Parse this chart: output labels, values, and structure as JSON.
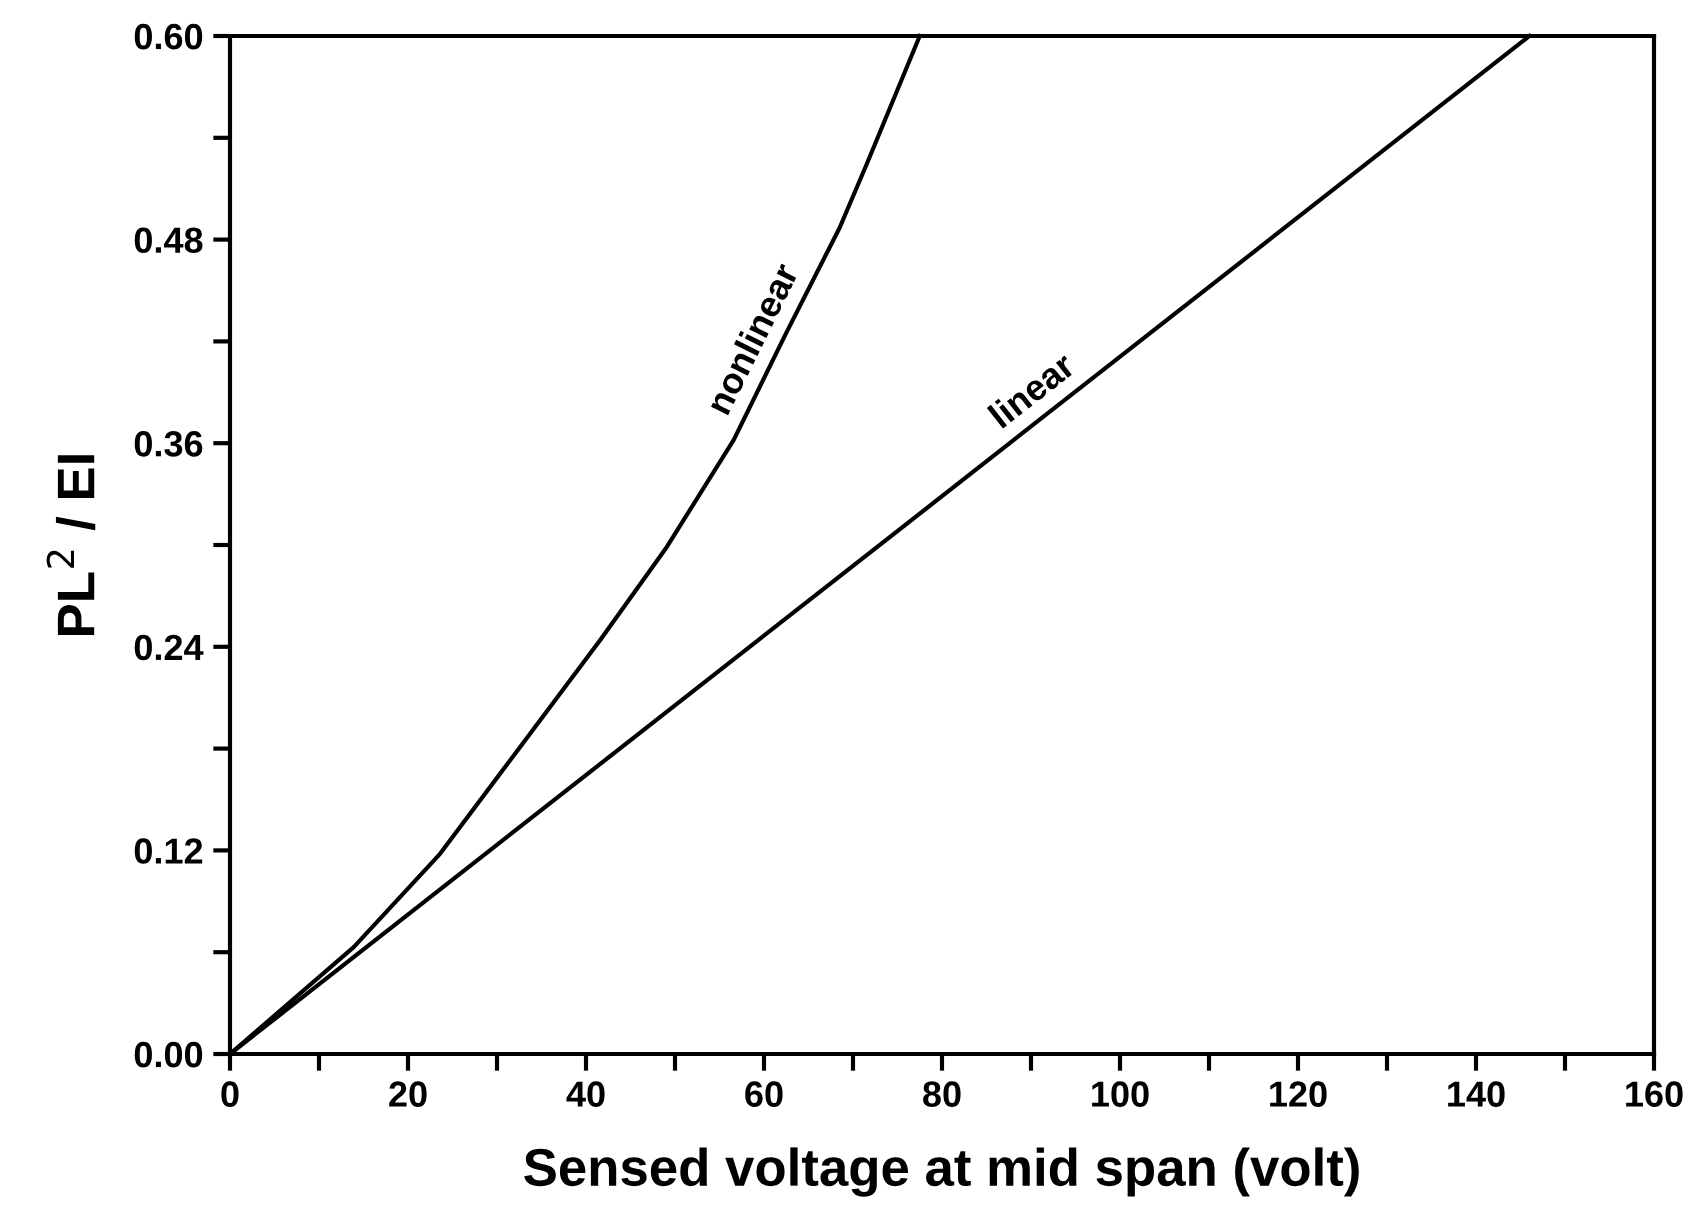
{
  "chart_data": {
    "type": "line",
    "xlabel": "Sensed voltage at mid span (volt)",
    "ylabel": "PL$^{2}$ / EI",
    "series": [
      {
        "name": "nonlinear",
        "color": "#000000",
        "x": [
          0,
          13.9,
          23.6,
          32.6,
          41.6,
          49.1,
          56.6,
          62.5,
          68.5,
          71.5,
          74.5,
          77.5
        ],
        "values": [
          0,
          0.063,
          0.118,
          0.181,
          0.244,
          0.299,
          0.362,
          0.425,
          0.487,
          0.524,
          0.562,
          0.6
        ]
      },
      {
        "name": "linear",
        "color": "#000000",
        "x": [
          0,
          146
        ],
        "values": [
          0,
          0.6
        ]
      }
    ],
    "xlim": [
      0,
      160
    ],
    "xticks": [
      0,
      {
        "value": 10,
        "label": null
      },
      20,
      {
        "value": 30,
        "label": null
      },
      40,
      {
        "value": 50,
        "label": null
      },
      60,
      {
        "value": 70,
        "label": null
      },
      80,
      {
        "value": 90,
        "label": null
      },
      100,
      {
        "value": 110,
        "label": null
      },
      120,
      {
        "value": 130,
        "label": null
      },
      140,
      {
        "value": 150,
        "label": null
      },
      160
    ],
    "ylim": [
      0,
      0.6
    ],
    "yticks": [
      {
        "value": 0,
        "label": "0.00"
      },
      {
        "value": 0.06,
        "label": null
      },
      {
        "value": 0.12,
        "label": "0.12"
      },
      {
        "value": 0.18,
        "label": null
      },
      {
        "value": 0.24,
        "label": "0.24"
      },
      {
        "value": 0.3,
        "label": null
      },
      {
        "value": 0.36,
        "label": "0.36"
      },
      {
        "value": 0.42,
        "label": null
      },
      {
        "value": 0.48,
        "label": "0.48"
      },
      {
        "value": 0.54,
        "label": null
      },
      {
        "value": 0.6,
        "label": "0.60"
      }
    ],
    "grid": false,
    "legend": false,
    "marker": "none",
    "line_style": "solid"
  }
}
